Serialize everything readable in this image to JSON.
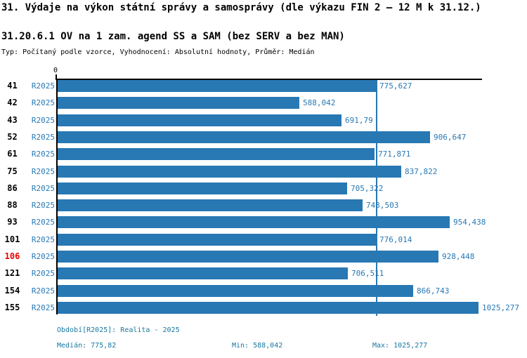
{
  "title": "31. Výdaje na výkon státní správy a samosprávy (dle výkazu FIN 2 – 12 M k 31.12.)",
  "subtitle": "31.20.6.1 OV na 1 zam. agend SS a SAM (bez SERV a bez MAN)",
  "meta_line": "Typ: Počítaný podle vzorce, Vyhodnocení: Absolutní hodnoty, Průměr: Medián",
  "chart_data": {
    "type": "bar",
    "orientation": "horizontal",
    "title": "31.20.6.1 OV na 1 zam. agend SS a SAM (bez SERV a bez MAN)",
    "series_label": "R2025",
    "categories": [
      "41",
      "42",
      "43",
      "52",
      "61",
      "75",
      "86",
      "88",
      "93",
      "101",
      "106",
      "121",
      "154",
      "155"
    ],
    "values": [
      775.627,
      588.042,
      691.79,
      906.647,
      771.871,
      837.822,
      705.322,
      743.503,
      954.438,
      776.014,
      928.448,
      706.511,
      866.743,
      1025.277
    ],
    "value_labels": [
      "775,627",
      "588,042",
      "691,79",
      "906,647",
      "771,871",
      "837,822",
      "705,322",
      "743,503",
      "954,438",
      "776,014",
      "928,448",
      "706,511",
      "866,743",
      "1025,277"
    ],
    "axis_origin_label": "0",
    "xlim": [
      0,
      1035
    ],
    "grid": false,
    "legend": "none",
    "median_line_value": 775.82,
    "highlighted_category": "106",
    "bar_color": "#2878b4",
    "highlight_color": "#e60000",
    "median_line_color": "#2878b4"
  },
  "footer": {
    "period": "Období[R2025]: Realita - 2025",
    "median": "Medián: 775,82",
    "min": "Min: 588,042",
    "max": "Max: 1025,277"
  }
}
